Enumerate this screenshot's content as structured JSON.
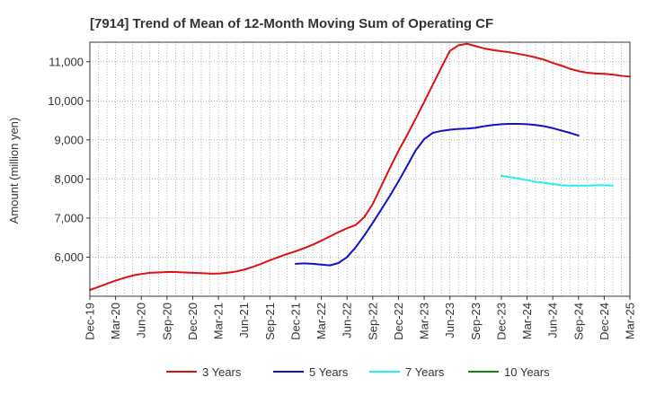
{
  "chart_data": {
    "type": "line",
    "title": "[7914]  Trend of Mean of 12-Month Moving Sum of Operating CF",
    "xlabel": "",
    "ylabel": "Amount (million yen)",
    "ylim": [
      5000,
      11500
    ],
    "yticks": [
      6000,
      7000,
      8000,
      9000,
      10000,
      11000
    ],
    "ytick_labels": [
      "6,000",
      "7,000",
      "8,000",
      "9,000",
      "10,000",
      "11,000"
    ],
    "x_start": "Dec-19",
    "x_end": "Mar-25",
    "xtick_labels": [
      "Dec-19",
      "Mar-20",
      "Jun-20",
      "Sep-20",
      "Dec-20",
      "Mar-21",
      "Jun-21",
      "Sep-21",
      "Dec-21",
      "Mar-22",
      "Jun-22",
      "Sep-22",
      "Dec-22",
      "Mar-23",
      "Jun-23",
      "Sep-23",
      "Dec-23",
      "Mar-24",
      "Jun-24",
      "Sep-24",
      "Dec-24",
      "Mar-25"
    ],
    "grid": true,
    "legend_position": "bottom",
    "series": [
      {
        "name": "3 Years",
        "color": "#dd1111",
        "start_month_index": 0,
        "values": [
          5160,
          5240,
          5320,
          5400,
          5470,
          5530,
          5570,
          5600,
          5610,
          5620,
          5620,
          5610,
          5600,
          5590,
          5580,
          5580,
          5600,
          5630,
          5680,
          5750,
          5830,
          5920,
          6000,
          6080,
          6150,
          6230,
          6320,
          6420,
          6530,
          6640,
          6740,
          6820,
          7020,
          7360,
          7820,
          8280,
          8720,
          9120,
          9540,
          9970,
          10410,
          10850,
          11280,
          11420,
          11460,
          11400,
          11340,
          11300,
          11270,
          11240,
          11200,
          11160,
          11110,
          11050,
          10970,
          10900,
          10820,
          10760,
          10720,
          10700,
          10690,
          10670,
          10640,
          10620
        ]
      },
      {
        "name": "5 Years",
        "color": "#1111cc",
        "start_month_index": 24,
        "values": [
          5830,
          5840,
          5830,
          5810,
          5790,
          5850,
          6000,
          6250,
          6550,
          6880,
          7220,
          7570,
          7940,
          8330,
          8730,
          9020,
          9180,
          9230,
          9260,
          9280,
          9290,
          9310,
          9350,
          9380,
          9400,
          9410,
          9410,
          9400,
          9380,
          9350,
          9300,
          9240,
          9180,
          9110
        ]
      },
      {
        "name": "7 Years",
        "color": "#22eeee",
        "start_month_index": 48,
        "values": [
          8080,
          8050,
          8010,
          7970,
          7930,
          7900,
          7870,
          7840,
          7830,
          7830,
          7830,
          7840,
          7840,
          7830
        ]
      },
      {
        "name": "10 Years",
        "color": "#118811",
        "start_month_index": 0,
        "values": []
      }
    ]
  }
}
